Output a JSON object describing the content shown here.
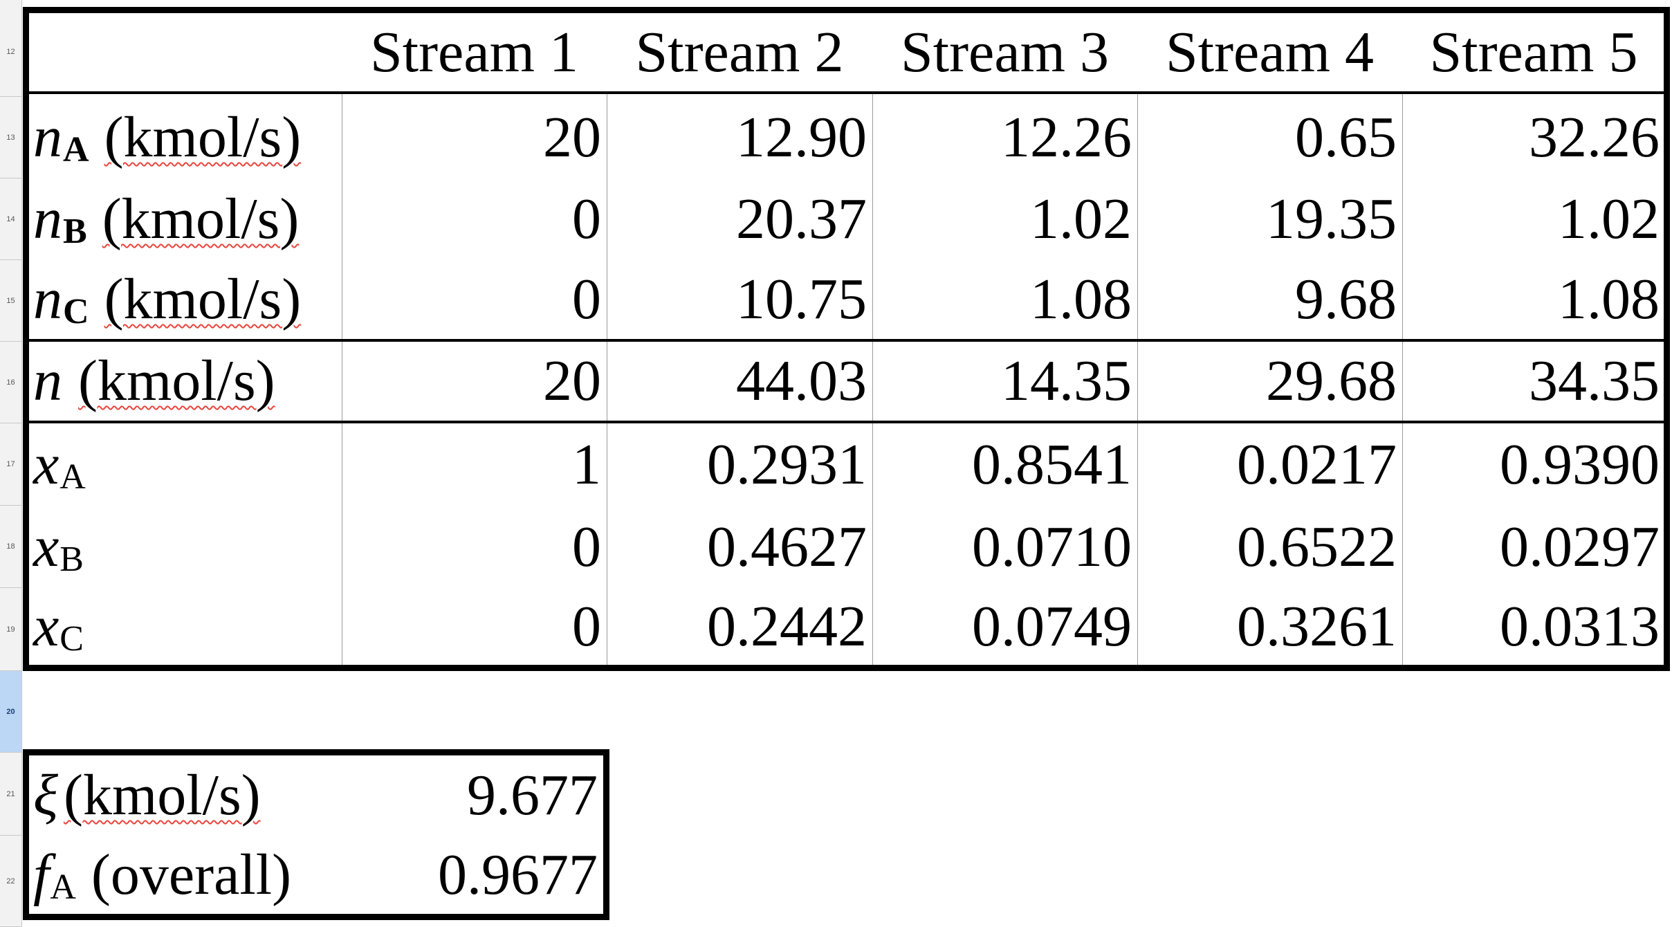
{
  "row_numbers": [
    "12",
    "13",
    "14",
    "15",
    "16",
    "17",
    "18",
    "19",
    "20",
    "21",
    "22"
  ],
  "selected_row": "20",
  "headers": [
    "Stream 1",
    "Stream 2",
    "Stream 3",
    "Stream 4",
    "Stream 5"
  ],
  "rows": [
    {
      "sym": "n",
      "sub": "A",
      "unit": "(kmol/s)",
      "values": [
        "20",
        "12.90",
        "12.26",
        "0.65",
        "32.26"
      ]
    },
    {
      "sym": "n",
      "sub": "B",
      "unit": "(kmol/s)",
      "values": [
        "0",
        "20.37",
        "1.02",
        "19.35",
        "1.02"
      ]
    },
    {
      "sym": "n",
      "sub": "C",
      "unit": "(kmol/s)",
      "values": [
        "0",
        "10.75",
        "1.08",
        "9.68",
        "1.08"
      ]
    },
    {
      "sym": "n",
      "sub": "",
      "unit": "(kmol/s)",
      "values": [
        "20",
        "44.03",
        "14.35",
        "29.68",
        "34.35"
      ]
    },
    {
      "sym": "x",
      "sub": "A",
      "unit": "",
      "values": [
        "1",
        "0.2931",
        "0.8541",
        "0.0217",
        "0.9390"
      ]
    },
    {
      "sym": "x",
      "sub": "B",
      "unit": "",
      "values": [
        "0",
        "0.4627",
        "0.0710",
        "0.6522",
        "0.0297"
      ]
    },
    {
      "sym": "x",
      "sub": "C",
      "unit": "",
      "values": [
        "0",
        "0.2442",
        "0.0749",
        "0.3261",
        "0.0313"
      ]
    }
  ],
  "summary": [
    {
      "sym": "ξ",
      "sub": "",
      "unit": "(kmol/s)",
      "value": "9.677"
    },
    {
      "sym": "f",
      "sub": "A",
      "unit": "(overall)",
      "value": "0.9677"
    }
  ]
}
